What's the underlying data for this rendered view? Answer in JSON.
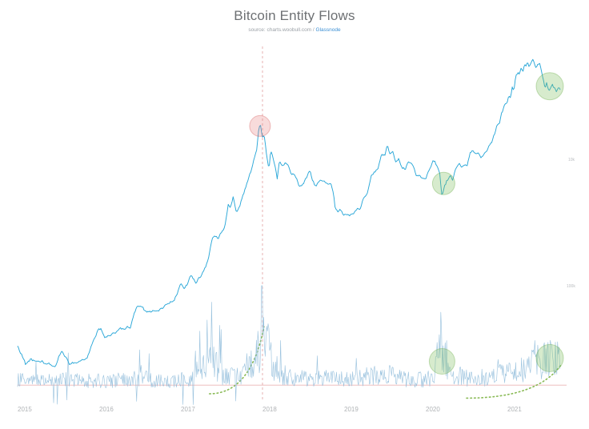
{
  "title": "Bitcoin Entity Flows",
  "subtitle": {
    "prefix": "source: charts.woobull.com / ",
    "link": "Glassnode"
  },
  "colors": {
    "price": "#2aa7d8",
    "flows": "#8cbad9",
    "annotation_green_fill": "rgba(124,190,90,0.30)",
    "annotation_green_stroke": "rgba(104,170,70,0.38)",
    "annotation_red_fill": "rgba(229,115,115,0.26)",
    "annotation_red_stroke": "rgba(213,90,90,0.38)",
    "dashed_vertical": "#dd8e8e",
    "baseline_red": "#e8a3a3",
    "dotted_green": "#7cb342",
    "tick_text": "#b0b3b6",
    "axis_text": "#b9bcbf",
    "title_text": "#6d7073",
    "link_blue": "#3b8fd4"
  },
  "chart_data": {
    "type": "line",
    "title": "Bitcoin Entity Flows",
    "subtitle": "source: charts.woobull.com / Glassnode",
    "x_axis": {
      "label": "",
      "ticks": [
        2015,
        2016,
        2017,
        2018,
        2019,
        2020,
        2021
      ],
      "range": [
        2015.0,
        2021.68
      ]
    },
    "y_axis_price": {
      "scale": "log",
      "range": [
        140,
        80000
      ],
      "right_tick_labels": [
        {
          "value": 10000,
          "label": "10k"
        }
      ]
    },
    "y_axis_flows": {
      "range": [
        -0.12,
        1.05
      ],
      "right_tick_labels": [
        {
          "value": 1.0,
          "label": "100k"
        }
      ]
    },
    "series": [
      {
        "name": "BTC Price (USD, log scale)",
        "points": [
          [
            2015.0,
            315
          ],
          [
            2015.05,
            272
          ],
          [
            2015.1,
            222
          ],
          [
            2015.16,
            250
          ],
          [
            2015.22,
            236
          ],
          [
            2015.28,
            245
          ],
          [
            2015.34,
            237
          ],
          [
            2015.4,
            232
          ],
          [
            2015.46,
            228
          ],
          [
            2015.5,
            262
          ],
          [
            2015.54,
            292
          ],
          [
            2015.58,
            258
          ],
          [
            2015.64,
            232
          ],
          [
            2015.72,
            236
          ],
          [
            2015.8,
            240
          ],
          [
            2015.86,
            264
          ],
          [
            2015.9,
            318
          ],
          [
            2015.94,
            378
          ],
          [
            2015.98,
            428
          ],
          [
            2016.02,
            434
          ],
          [
            2016.07,
            373
          ],
          [
            2016.12,
            388
          ],
          [
            2016.18,
            418
          ],
          [
            2016.25,
            424
          ],
          [
            2016.32,
            438
          ],
          [
            2016.38,
            455
          ],
          [
            2016.43,
            585
          ],
          [
            2016.48,
            672
          ],
          [
            2016.52,
            655
          ],
          [
            2016.58,
            575
          ],
          [
            2016.65,
            608
          ],
          [
            2016.72,
            612
          ],
          [
            2016.8,
            655
          ],
          [
            2016.86,
            700
          ],
          [
            2016.92,
            745
          ],
          [
            2016.97,
            905
          ],
          [
            2017.0,
            985
          ],
          [
            2017.04,
            905
          ],
          [
            2017.08,
            1010
          ],
          [
            2017.13,
            1165
          ],
          [
            2017.18,
            1040
          ],
          [
            2017.23,
            1120
          ],
          [
            2017.28,
            1255
          ],
          [
            2017.33,
            1480
          ],
          [
            2017.38,
            2250
          ],
          [
            2017.42,
            2450
          ],
          [
            2017.46,
            2300
          ],
          [
            2017.5,
            2550
          ],
          [
            2017.54,
            2870
          ],
          [
            2017.58,
            4350
          ],
          [
            2017.61,
            4050
          ],
          [
            2017.64,
            4820
          ],
          [
            2017.68,
            3850
          ],
          [
            2017.72,
            4330
          ],
          [
            2017.76,
            5200
          ],
          [
            2017.8,
            6150
          ],
          [
            2017.84,
            7250
          ],
          [
            2017.87,
            8150
          ],
          [
            2017.9,
            9900
          ],
          [
            2017.93,
            11600
          ],
          [
            2017.95,
            16400
          ],
          [
            2017.97,
            19500
          ],
          [
            2018.0,
            14800
          ],
          [
            2018.02,
            15100
          ],
          [
            2018.05,
            10900
          ],
          [
            2018.08,
            8400
          ],
          [
            2018.1,
            11400
          ],
          [
            2018.13,
            10100
          ],
          [
            2018.16,
            8400
          ],
          [
            2018.18,
            6950
          ],
          [
            2018.21,
            9750
          ],
          [
            2018.24,
            8850
          ],
          [
            2018.28,
            9250
          ],
          [
            2018.32,
            8450
          ],
          [
            2018.36,
            7450
          ],
          [
            2018.4,
            7550
          ],
          [
            2018.44,
            6350
          ],
          [
            2018.47,
            6150
          ],
          [
            2018.51,
            6650
          ],
          [
            2018.55,
            7350
          ],
          [
            2018.58,
            8150
          ],
          [
            2018.61,
            6950
          ],
          [
            2018.64,
            6250
          ],
          [
            2018.68,
            6450
          ],
          [
            2018.72,
            6700
          ],
          [
            2018.76,
            6400
          ],
          [
            2018.8,
            6450
          ],
          [
            2018.84,
            6350
          ],
          [
            2018.87,
            5550
          ],
          [
            2018.89,
            4250
          ],
          [
            2018.92,
            3800
          ],
          [
            2018.95,
            4150
          ],
          [
            2018.98,
            3720
          ],
          [
            2019.02,
            3650
          ],
          [
            2019.06,
            3440
          ],
          [
            2019.1,
            3620
          ],
          [
            2019.15,
            3920
          ],
          [
            2019.2,
            4080
          ],
          [
            2019.24,
            5150
          ],
          [
            2019.28,
            5350
          ],
          [
            2019.33,
            7250
          ],
          [
            2019.38,
            8050
          ],
          [
            2019.42,
            8650
          ],
          [
            2019.46,
            11150
          ],
          [
            2019.5,
            10750
          ],
          [
            2019.53,
            12900
          ],
          [
            2019.56,
            10750
          ],
          [
            2019.59,
            11850
          ],
          [
            2019.63,
            9750
          ],
          [
            2019.67,
            10350
          ],
          [
            2019.71,
            8550
          ],
          [
            2019.75,
            8350
          ],
          [
            2019.78,
            9550
          ],
          [
            2019.82,
            9150
          ],
          [
            2019.85,
            8550
          ],
          [
            2019.88,
            7350
          ],
          [
            2019.92,
            7500
          ],
          [
            2019.96,
            7150
          ],
          [
            2020.0,
            7200
          ],
          [
            2020.04,
            8350
          ],
          [
            2020.08,
            9450
          ],
          [
            2020.11,
            9900
          ],
          [
            2020.14,
            8650
          ],
          [
            2020.17,
            7950
          ],
          [
            2020.2,
            4950
          ],
          [
            2020.23,
            6250
          ],
          [
            2020.26,
            6800
          ],
          [
            2020.3,
            7300
          ],
          [
            2020.33,
            6900
          ],
          [
            2020.37,
            8800
          ],
          [
            2020.41,
            9600
          ],
          [
            2020.44,
            8800
          ],
          [
            2020.48,
            9300
          ],
          [
            2020.51,
            9150
          ],
          [
            2020.54,
            11150
          ],
          [
            2020.58,
            11800
          ],
          [
            2020.61,
            11400
          ],
          [
            2020.64,
            11700
          ],
          [
            2020.67,
            10350
          ],
          [
            2020.71,
            10700
          ],
          [
            2020.74,
            11500
          ],
          [
            2020.78,
            13100
          ],
          [
            2020.81,
            13800
          ],
          [
            2020.84,
            15600
          ],
          [
            2020.87,
            18400
          ],
          [
            2020.9,
            19200
          ],
          [
            2020.93,
            23800
          ],
          [
            2020.97,
            27300
          ],
          [
            2021.0,
            29400
          ],
          [
            2021.02,
            33000
          ],
          [
            2021.04,
            31500
          ],
          [
            2021.06,
            38500
          ],
          [
            2021.08,
            35500
          ],
          [
            2021.1,
            46300
          ],
          [
            2021.13,
            49300
          ],
          [
            2021.15,
            47000
          ],
          [
            2021.17,
            54300
          ],
          [
            2021.19,
            48500
          ],
          [
            2021.21,
            57500
          ],
          [
            2021.23,
            54200
          ],
          [
            2021.25,
            58900
          ],
          [
            2021.27,
            55200
          ],
          [
            2021.29,
            59200
          ],
          [
            2021.31,
            63500
          ],
          [
            2021.33,
            58800
          ],
          [
            2021.35,
            55800
          ],
          [
            2021.37,
            58100
          ],
          [
            2021.4,
            56900
          ],
          [
            2021.42,
            49100
          ],
          [
            2021.44,
            43200
          ],
          [
            2021.46,
            36800
          ],
          [
            2021.48,
            40600
          ],
          [
            2021.5,
            37300
          ],
          [
            2021.52,
            35600
          ],
          [
            2021.55,
            39300
          ],
          [
            2021.58,
            36900
          ],
          [
            2021.6,
            35500
          ],
          [
            2021.63,
            38200
          ],
          [
            2021.65,
            35200
          ]
        ]
      },
      {
        "name": "Entity Flows",
        "points": [
          [
            2015.0,
            0.12
          ],
          [
            2015.3,
            0.11
          ],
          [
            2015.6,
            0.13
          ],
          [
            2015.9,
            0.12
          ],
          [
            2016.2,
            0.12
          ],
          [
            2016.5,
            0.14
          ],
          [
            2016.8,
            0.12
          ],
          [
            2017.0,
            0.13
          ],
          [
            2017.2,
            0.15
          ],
          [
            2017.32,
            0.28
          ],
          [
            2017.4,
            0.3
          ],
          [
            2017.5,
            0.18
          ],
          [
            2017.65,
            0.16
          ],
          [
            2017.8,
            0.2
          ],
          [
            2017.9,
            0.28
          ],
          [
            2017.97,
            0.45
          ],
          [
            2018.0,
            0.85
          ],
          [
            2018.03,
            0.6
          ],
          [
            2018.08,
            0.38
          ],
          [
            2018.15,
            0.25
          ],
          [
            2018.25,
            0.17
          ],
          [
            2018.4,
            0.14
          ],
          [
            2018.6,
            0.13
          ],
          [
            2018.8,
            0.14
          ],
          [
            2019.0,
            0.13
          ],
          [
            2019.2,
            0.15
          ],
          [
            2019.4,
            0.17
          ],
          [
            2019.55,
            0.18
          ],
          [
            2019.7,
            0.14
          ],
          [
            2019.9,
            0.13
          ],
          [
            2020.0,
            0.13
          ],
          [
            2020.1,
            0.14
          ],
          [
            2020.18,
            0.48
          ],
          [
            2020.22,
            0.35
          ],
          [
            2020.3,
            0.18
          ],
          [
            2020.45,
            0.15
          ],
          [
            2020.6,
            0.14
          ],
          [
            2020.75,
            0.15
          ],
          [
            2020.9,
            0.17
          ],
          [
            2021.0,
            0.19
          ],
          [
            2021.1,
            0.21
          ],
          [
            2021.2,
            0.23
          ],
          [
            2021.3,
            0.26
          ],
          [
            2021.4,
            0.29
          ],
          [
            2021.5,
            0.32
          ],
          [
            2021.58,
            0.3
          ],
          [
            2021.65,
            0.31
          ]
        ]
      }
    ],
    "annotations": {
      "vertical_dashed_line": {
        "x": 2018.0
      },
      "baseline": {
        "flows_value": 0.08
      },
      "highlight_circles": [
        {
          "series": "price",
          "x": 2017.97,
          "y": 18500,
          "r": 13,
          "color": "red"
        },
        {
          "series": "price",
          "x": 2020.22,
          "y": 6400,
          "r": 14,
          "color": "green"
        },
        {
          "series": "price",
          "x": 2021.52,
          "y": 38500,
          "r": 17,
          "color": "green"
        },
        {
          "series": "flows",
          "x": 2020.2,
          "y": 0.3,
          "r": 16,
          "color": "green"
        },
        {
          "series": "flows",
          "x": 2021.52,
          "y": 0.33,
          "r": 17,
          "color": "green"
        }
      ],
      "dotted_growth_curves": [
        {
          "series": "flows",
          "from": [
            2017.35,
            0.0
          ],
          "to": [
            2018.02,
            0.62
          ]
        },
        {
          "series": "flows",
          "from": [
            2020.5,
            -0.04
          ],
          "to": [
            2021.66,
            0.27
          ]
        }
      ]
    }
  }
}
